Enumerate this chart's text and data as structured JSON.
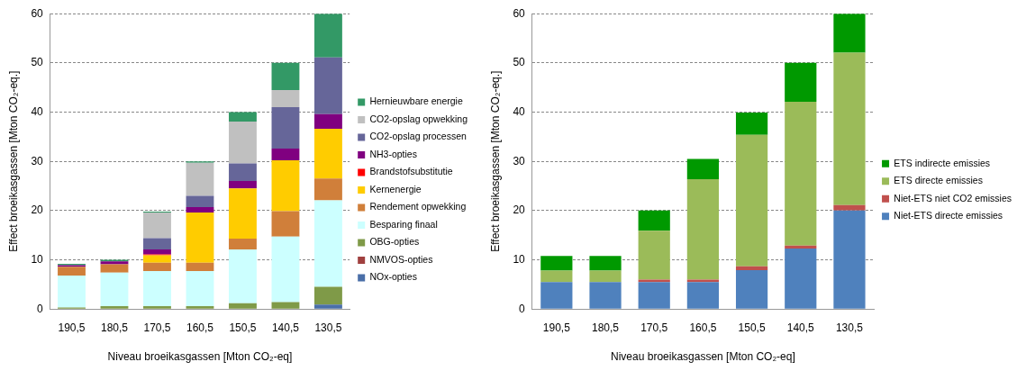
{
  "chart_data": [
    {
      "type": "bar",
      "stacked": true,
      "xlabel": "Niveau broeikasgassen [Mton CO₂-eq]",
      "ylabel": "Effect broeikasgassen [Mton CO₂-eq.]",
      "categories": [
        "190,5",
        "180,5",
        "170,5",
        "160,5",
        "150,5",
        "140,5",
        "130,5"
      ],
      "ylim": [
        0,
        60
      ],
      "yticks": [
        0,
        10,
        20,
        30,
        40,
        50,
        60
      ],
      "grid": "y",
      "legend": "right",
      "series": [
        {
          "name": "NOx-opties",
          "color": "#4a6fa8",
          "values": [
            0,
            0,
            0,
            0,
            0,
            0,
            0.9
          ]
        },
        {
          "name": "NMVOS-opties",
          "color": "#a0403f",
          "values": [
            0,
            0,
            0,
            0,
            0,
            0,
            0
          ]
        },
        {
          "name": "OBG-opties",
          "color": "#7f9a48",
          "values": [
            0.3,
            0.6,
            0.6,
            0.6,
            1.2,
            1.4,
            3.6
          ]
        },
        {
          "name": "Besparing finaal",
          "color": "#ccffff",
          "values": [
            6.5,
            6.8,
            7.1,
            7.1,
            10.9,
            13.3,
            17.6
          ]
        },
        {
          "name": "Rendement opwekking",
          "color": "#d07f3a",
          "values": [
            1.8,
            1.7,
            1.7,
            1.7,
            2.2,
            5.2,
            4.4
          ]
        },
        {
          "name": "Kernenergie",
          "color": "#ffcc00",
          "values": [
            0,
            0,
            1.5,
            10.2,
            10.2,
            10.3,
            10.1
          ]
        },
        {
          "name": "Brandstofsubstitutie",
          "color": "#ff0000",
          "values": [
            0,
            0,
            0.2,
            0,
            0,
            0,
            0
          ]
        },
        {
          "name": "NH3-opties",
          "color": "#800080",
          "values": [
            0.3,
            0.6,
            1.0,
            1.1,
            1.5,
            2.4,
            3.0
          ]
        },
        {
          "name": "CO2-opslag processen",
          "color": "#666699",
          "values": [
            0,
            0,
            2.3,
            2.3,
            3.6,
            8.4,
            11.5
          ]
        },
        {
          "name": "CO2-opslag opwekking",
          "color": "#c0c0c0",
          "values": [
            0,
            0,
            5.2,
            6.7,
            8.5,
            3.5,
            0
          ]
        },
        {
          "name": "Hernieuwbare energie",
          "color": "#339966",
          "values": [
            0.3,
            0.3,
            0.2,
            0.3,
            1.9,
            5.5,
            8.9
          ]
        }
      ]
    },
    {
      "type": "bar",
      "stacked": true,
      "xlabel": "Niveau broeikasgassen [Mton CO₂-eq]",
      "ylabel": "Effect broeikasgassen [Mton CO₂-eq.]",
      "categories": [
        "190,5",
        "180,5",
        "170,5",
        "160,5",
        "150,5",
        "140,5",
        "130,5"
      ],
      "ylim": [
        0,
        60
      ],
      "yticks": [
        0,
        10,
        20,
        30,
        40,
        50,
        60
      ],
      "grid": "y",
      "legend": "right",
      "series": [
        {
          "name": "Niet-ETS directe emissies",
          "color": "#4f81bd",
          "values": [
            5.5,
            5.5,
            5.5,
            5.5,
            7.9,
            12.3,
            20.0
          ]
        },
        {
          "name": "Niet-ETS niet CO2 emissies",
          "color": "#c0504d",
          "values": [
            0,
            0,
            0.5,
            0.5,
            0.8,
            0.6,
            1.1
          ]
        },
        {
          "name": "ETS directe emissies",
          "color": "#9bbb59",
          "values": [
            2.3,
            2.3,
            9.9,
            20.4,
            26.7,
            29.2,
            31.0
          ]
        },
        {
          "name": "ETS indirecte emissies",
          "color": "#009900",
          "values": [
            3.0,
            3.0,
            4.1,
            4.1,
            4.5,
            7.9,
            7.9
          ]
        }
      ]
    }
  ]
}
